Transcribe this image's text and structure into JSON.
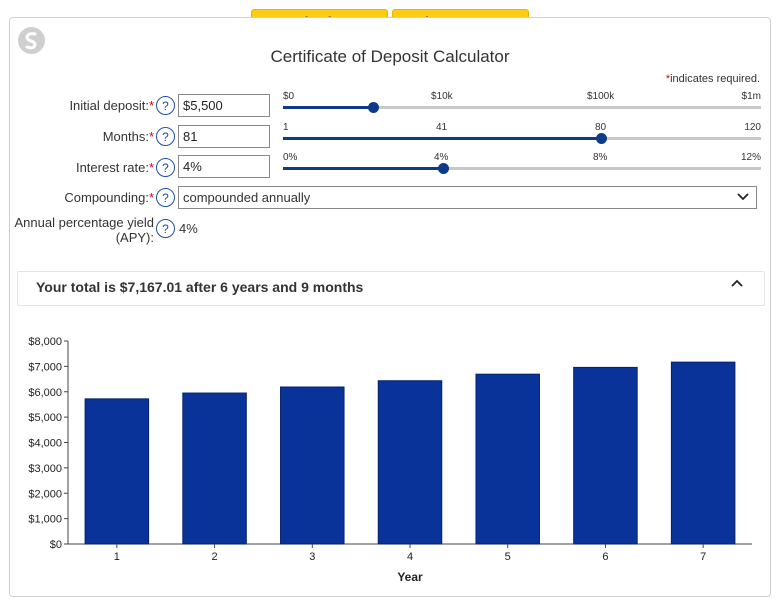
{
  "toolbar": {
    "calculate_label": "Calculate",
    "view_report_label": "View Report"
  },
  "page": {
    "title": "Certificate of Deposit Calculator",
    "required_note": "indicates required."
  },
  "form": {
    "initial_deposit": {
      "label": "Initial deposit:",
      "value": "$5,500",
      "slider": {
        "ticks": [
          "$0",
          "$10k",
          "$100k",
          "$1m"
        ],
        "position_fraction": 0.3
      }
    },
    "months": {
      "label": "Months:",
      "value": "81",
      "slider": {
        "ticks": [
          "1",
          "41",
          "80",
          "120"
        ],
        "min": 1,
        "max": 120,
        "value": 81
      }
    },
    "interest_rate": {
      "label": "Interest rate:",
      "value": "4%",
      "slider": {
        "ticks": [
          "0%",
          "4%",
          "8%",
          "12%"
        ],
        "min": 0,
        "max": 12,
        "value": 4
      }
    },
    "compounding": {
      "label": "Compounding:",
      "value": "compounded annually"
    },
    "apy": {
      "label_line1": "Annual percentage yield",
      "label_line2": "(APY):",
      "value": "4%"
    }
  },
  "summary": {
    "text": "Your total is $7,167.01 after 6 years and 9 months"
  },
  "icons": {
    "help": "?",
    "chevron_down": "chevron-down-icon",
    "chevron_up": "chevron-up-icon"
  },
  "colors": {
    "accent": "#fccc12",
    "brand_blue": "#0f3a8a",
    "bar_fill": "#0a3399",
    "required": "#d0021b"
  },
  "chart_data": {
    "type": "bar",
    "xlabel": "Year",
    "ylabel": "",
    "categories": [
      "1",
      "2",
      "3",
      "4",
      "5",
      "6",
      "7"
    ],
    "values": [
      5720,
      5949,
      6187,
      6434,
      6692,
      6959,
      7167
    ],
    "ylim": [
      0,
      8000
    ],
    "yticks": [
      "$0",
      "$1,000",
      "$2,000",
      "$3,000",
      "$4,000",
      "$5,000",
      "$6,000",
      "$7,000",
      "$8,000"
    ],
    "grid": false,
    "legend": "none"
  }
}
